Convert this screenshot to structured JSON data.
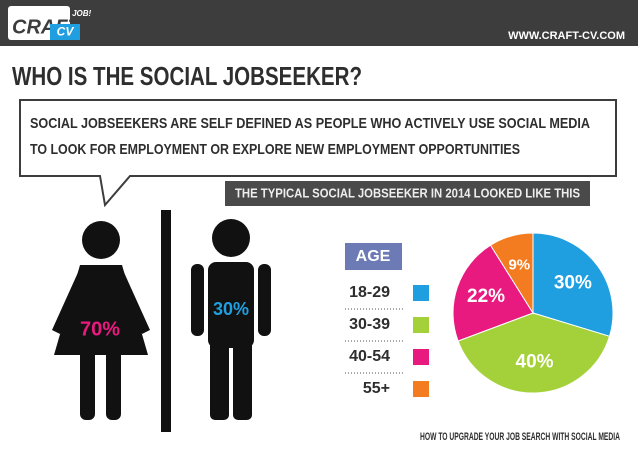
{
  "header": {
    "logo": "CRAFT",
    "logo_suffix": "CV",
    "tagline": "GET A JOB!",
    "url": "WWW.CRAFT-CV.COM"
  },
  "title": "WHO IS THE SOCIAL JOBSEEKER?",
  "callout": [
    "SOCIAL JOBSEEKERS ARE SELF DEFINED AS PEOPLE WHO ACTIVELY USE SOCIAL MEDIA",
    "TO LOOK FOR EMPLOYMENT OR EXPLORE NEW EMPLOYMENT OPPORTUNITIES"
  ],
  "banner": "THE TYPICAL SOCIAL JOBSEEKER IN 2014 LOOKED LIKE THIS",
  "gender": {
    "female": "70%",
    "male": "30%"
  },
  "chart_data": {
    "type": "pie",
    "legend_title": "AGE",
    "categories": [
      "18-29",
      "30-39",
      "40-54",
      "55+"
    ],
    "values": [
      30,
      40,
      22,
      9
    ],
    "value_labels": [
      "30%",
      "40%",
      "22%",
      "9%"
    ],
    "colors": [
      "#1f9fe0",
      "#a4d13a",
      "#e8197f",
      "#f47c20"
    ]
  },
  "footer": "HOW TO UPGRADE YOUR JOB SEARCH WITH SOCIAL MEDIA"
}
